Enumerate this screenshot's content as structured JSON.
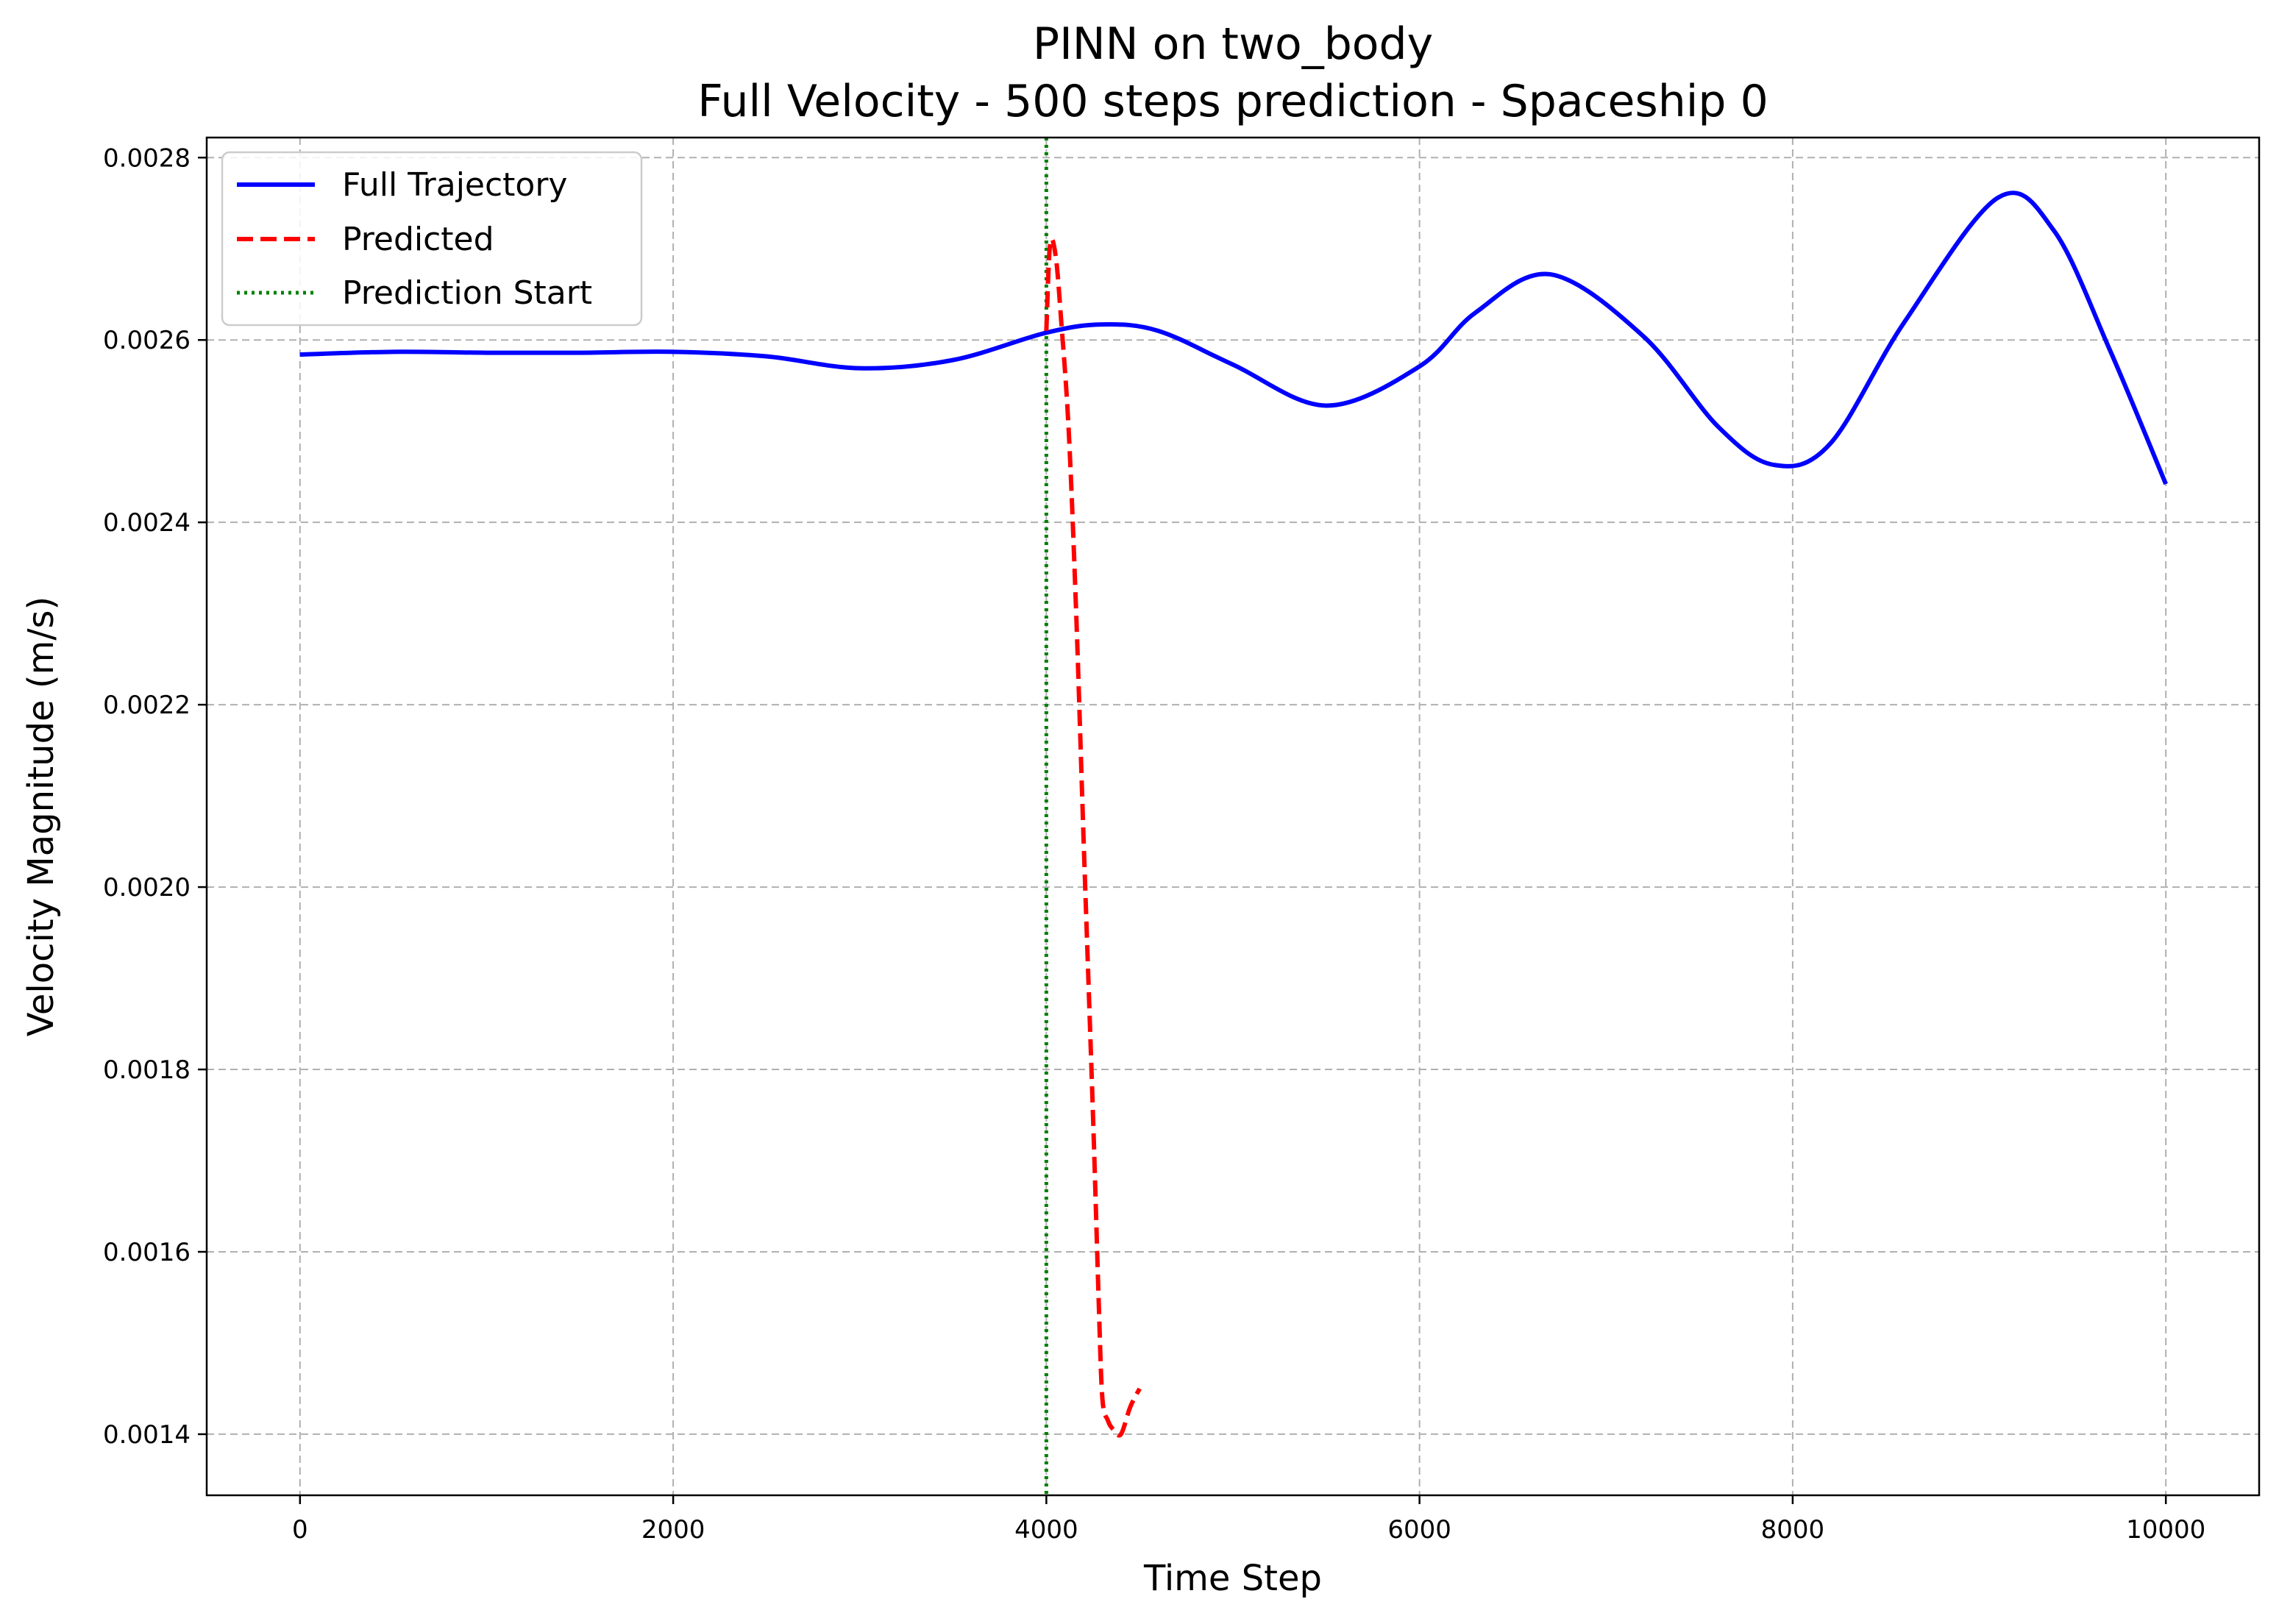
{
  "chart_data": {
    "type": "line",
    "title": "PINN on two_body",
    "subtitle": "Full Velocity - 500 steps prediction - Spaceship 0",
    "xlabel": "Time Step",
    "ylabel": "Velocity Magnitude (m/s)",
    "xlim": [
      -500,
      10500
    ],
    "ylim": [
      0.001333,
      0.002822
    ],
    "xticks": [
      0,
      2000,
      4000,
      6000,
      8000,
      10000
    ],
    "xtick_labels": [
      "0",
      "2000",
      "4000",
      "6000",
      "8000",
      "10000"
    ],
    "yticks": [
      0.0014,
      0.0016,
      0.0018,
      0.002,
      0.0022,
      0.0024,
      0.0026,
      0.0028
    ],
    "ytick_labels": [
      "0.0014",
      "0.0016",
      "0.0018",
      "0.0020",
      "0.0022",
      "0.0024",
      "0.0026",
      "0.0028"
    ],
    "grid": true,
    "legend_position": "top-left",
    "series": [
      {
        "name": "Full Trajectory",
        "color": "#0000ff",
        "style": "solid",
        "x": [
          0,
          500,
          1000,
          1500,
          2000,
          2500,
          3000,
          3500,
          4000,
          4300,
          4600,
          5000,
          5500,
          6000,
          6300,
          6700,
          7200,
          7600,
          7900,
          8200,
          8600,
          9100,
          9400,
          9700,
          10000
        ],
        "y": [
          0.002584,
          0.002587,
          0.002586,
          0.002586,
          0.002587,
          0.002582,
          0.002569,
          0.002578,
          0.002608,
          0.002617,
          0.00261,
          0.002573,
          0.002528,
          0.002571,
          0.00263,
          0.002672,
          0.002604,
          0.002505,
          0.002463,
          0.002486,
          0.00262,
          0.002756,
          0.00272,
          0.002589,
          0.002442
        ]
      },
      {
        "name": "Predicted",
        "color": "#ff0000",
        "style": "dashed",
        "x": [
          4000,
          4020,
          4050,
          4080,
          4120,
          4160,
          4200,
          4250,
          4280,
          4300,
          4330,
          4360,
          4400,
          4450,
          4500
        ],
        "y": [
          0.00261,
          0.002705,
          0.002692,
          0.00262,
          0.0025,
          0.0023,
          0.00205,
          0.00175,
          0.00155,
          0.00144,
          0.001415,
          0.001405,
          0.0014,
          0.00143,
          0.00145
        ]
      }
    ],
    "vlines": [
      {
        "name": "Prediction Start",
        "x": 4000,
        "color": "#008000",
        "style": "dotted"
      }
    ]
  }
}
